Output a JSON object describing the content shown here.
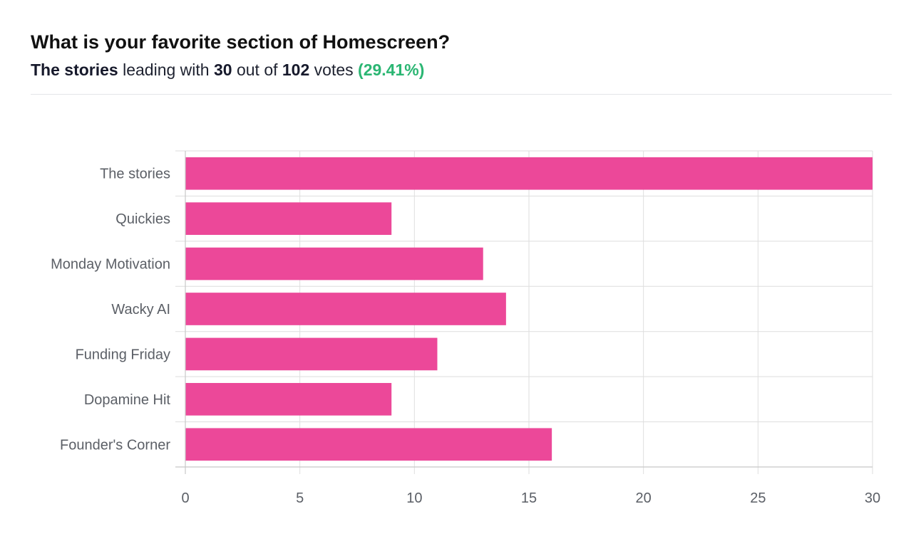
{
  "header": {
    "title": "What is your favorite section of Homescreen?",
    "leader": "The stories",
    "leading_with": "leading with",
    "leader_votes": "30",
    "out_of": "out of",
    "total_votes": "102",
    "votes_word": "votes",
    "leader_percent": "(29.41%)"
  },
  "colors": {
    "bar": "#ec4899",
    "grid": "#dedede",
    "percent": "#2bb673"
  },
  "chart_data": {
    "type": "bar",
    "orientation": "horizontal",
    "categories": [
      "The stories",
      "Quickies",
      "Monday Motivation",
      "Wacky AI ",
      "Funding Friday",
      "Dopamine Hit",
      "Founder's Corner"
    ],
    "values": [
      30,
      9,
      13,
      14,
      11,
      9,
      16
    ],
    "xlim": [
      0,
      30
    ],
    "xticks": [
      0,
      5,
      10,
      15,
      20,
      25,
      30
    ],
    "grid": true,
    "legend": "none"
  }
}
